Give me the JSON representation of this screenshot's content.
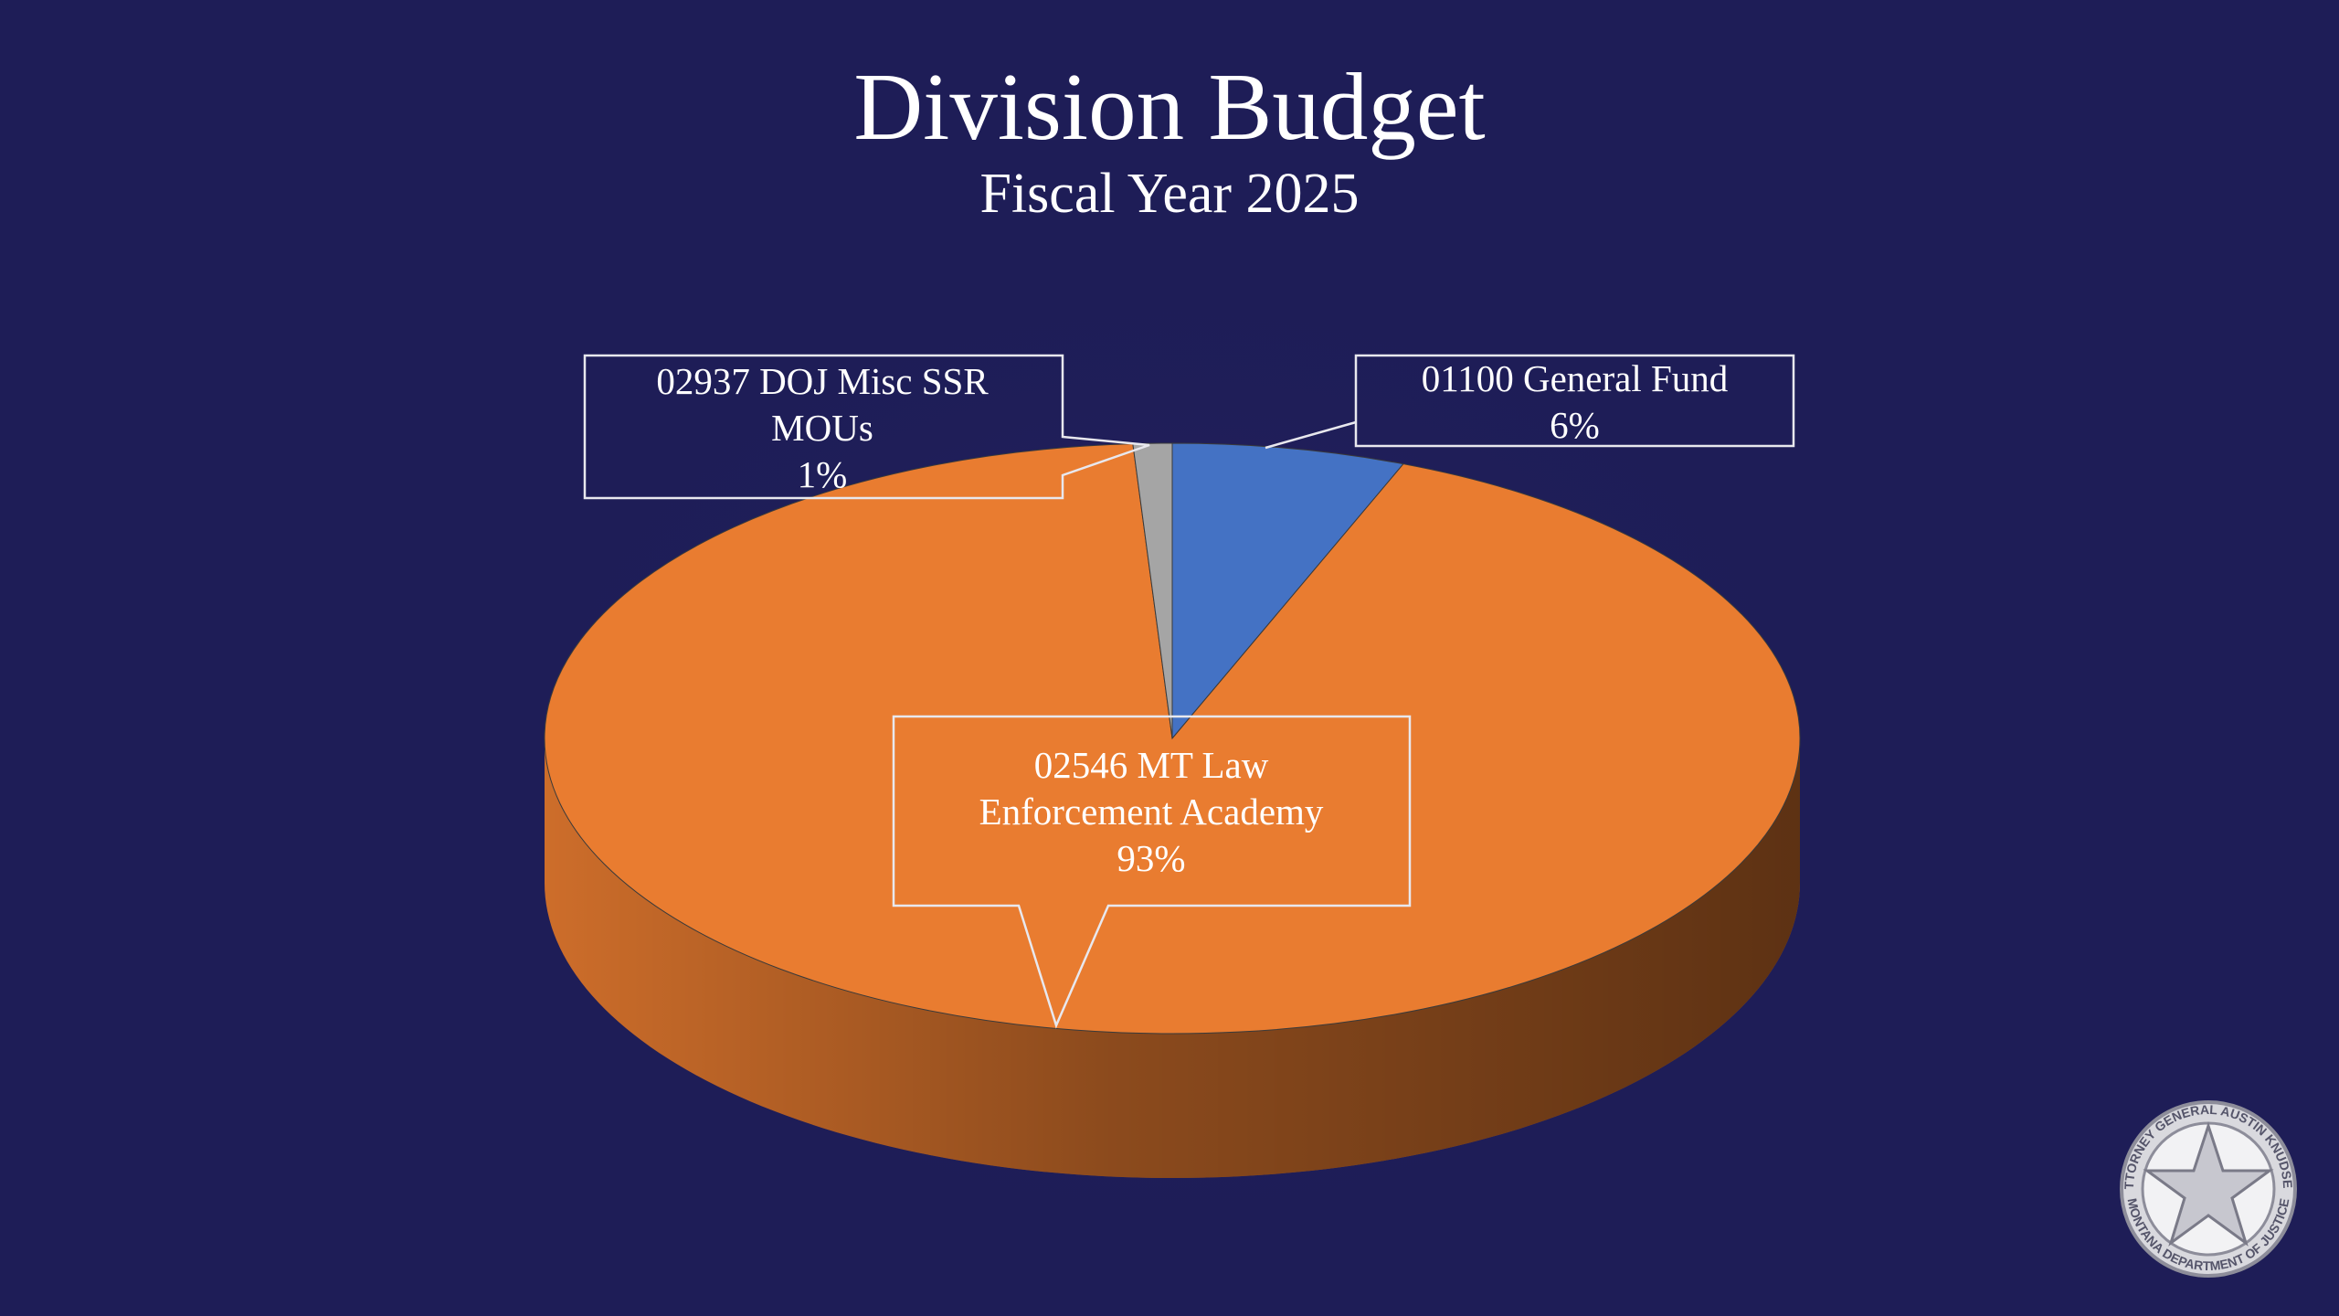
{
  "chart_data": {
    "type": "pie",
    "title": "Division Budget",
    "subtitle": "Fiscal Year 2025",
    "categories": [
      "01100 General Fund",
      "02546 MT Law Enforcement Academy",
      "02937 DOJ Misc SSR MOUs"
    ],
    "values": [
      6,
      93,
      1
    ],
    "value_labels": [
      "6%",
      "93%",
      "1%"
    ],
    "colors": [
      "#4472c4",
      "#e97c30",
      "#a5a5a5"
    ],
    "three_d": true
  },
  "seal_text": [
    "ATTORNEY GENERAL AUSTIN KNUDSEN",
    "MONTANA DEPARTMENT OF JUSTICE"
  ]
}
